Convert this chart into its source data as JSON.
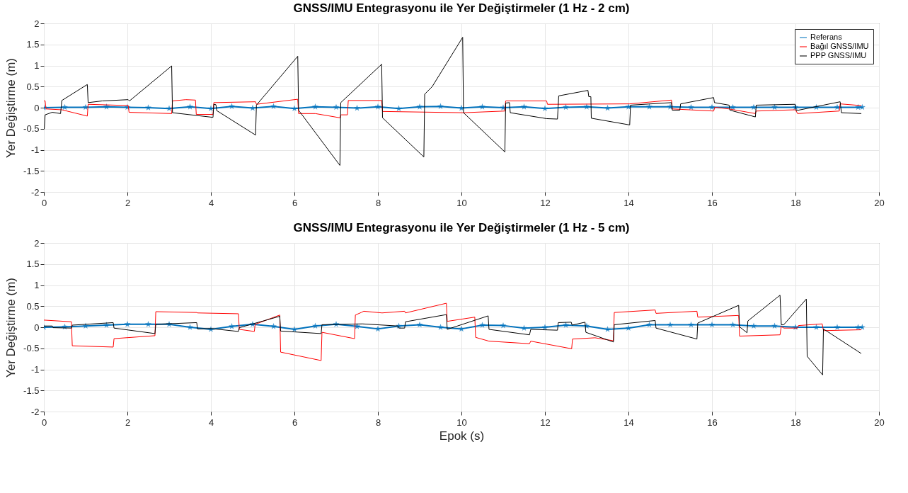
{
  "chart_data": [
    {
      "type": "line",
      "title": "GNSS/IMU Entegrasyonu ile Yer Değiştirmeler (1 Hz - 2 cm)",
      "ylabel": "Yer Değiştirme (m)",
      "xlim": [
        0,
        20
      ],
      "xticks": [
        0,
        2,
        4,
        6,
        8,
        10,
        12,
        14,
        16,
        18,
        20
      ],
      "ylim": [
        -2,
        2
      ],
      "yticks": [
        -2,
        -1.5,
        -1,
        -0.5,
        0,
        0.5,
        1,
        1.5,
        2
      ],
      "grid": true,
      "legend": "top right",
      "series": [
        {
          "name": "Referans",
          "color": "#0072bd",
          "marker": "star",
          "x": [
            0,
            0.5,
            1,
            1.5,
            2,
            2.5,
            3,
            3.5,
            4,
            4.5,
            5,
            5.5,
            6,
            6.5,
            7,
            7.5,
            8,
            8.5,
            9,
            9.5,
            10,
            10.5,
            11,
            11.5,
            12,
            12.5,
            13,
            13.5,
            14,
            14.5,
            15,
            15.5,
            16,
            16.5,
            17,
            17.5,
            18,
            18.5,
            19,
            19.5,
            19.6
          ],
          "values": [
            0,
            0.01,
            0.01,
            0.02,
            0.01,
            0,
            -0.02,
            0.02,
            -0.02,
            0.03,
            -0.01,
            0.03,
            -0.02,
            0.02,
            0.01,
            -0.01,
            0.02,
            -0.02,
            0.02,
            0.03,
            -0.01,
            0.02,
            0,
            0.02,
            -0.02,
            0.01,
            0.02,
            -0.01,
            0.02,
            0.02,
            0.02,
            0.01,
            0.01,
            0.01,
            0.01,
            0.01,
            0.01,
            0.01,
            0.01,
            0.01,
            0.01
          ]
        },
        {
          "name": "Bağıl GNSS/IMU",
          "color": "#ff0000",
          "x": [
            0,
            0.03,
            0.05,
            0.43,
            1.04,
            1.06,
            2.02,
            2.04,
            3.06,
            3.08,
            3.4,
            3.63,
            3.65,
            4.05,
            4.07,
            5.07,
            5.09,
            6.08,
            6.1,
            6.5,
            7.09,
            7.11,
            7.27,
            7.29,
            8.09,
            8.11,
            10.05,
            11.04,
            11.06,
            12.04,
            12.06,
            14.03,
            15.03,
            15.05,
            16.04,
            16.07,
            16.41,
            17.04,
            17.06,
            18,
            18.05,
            19.05,
            19.07,
            19.57
          ],
          "values": [
            0.16,
            0.16,
            -0.03,
            -0.05,
            -0.2,
            0.08,
            0.05,
            -0.11,
            -0.14,
            0.16,
            0.19,
            0.18,
            -0.16,
            -0.16,
            0.12,
            0.14,
            0.08,
            0.2,
            -0.14,
            -0.14,
            -0.24,
            -0.17,
            -0.17,
            0.17,
            0.17,
            -0.09,
            -0.12,
            -0.08,
            0.16,
            0.16,
            0.08,
            0.09,
            0.18,
            -0.03,
            -0.08,
            0.01,
            -0.03,
            -0.14,
            -0.08,
            -0.05,
            -0.14,
            -0.08,
            0.09,
            0.05
          ]
        },
        {
          "name": "PPP GNSS/IMU",
          "color": "#000000",
          "x": [
            0.01,
            0.03,
            0.2,
            0.4,
            0.43,
            1.04,
            1.06,
            1.4,
            2.02,
            2.05,
            3.06,
            3.08,
            4.05,
            4.07,
            4.12,
            4.14,
            5.07,
            5.09,
            6.08,
            6.1,
            7.09,
            7.11,
            8.09,
            8.11,
            9.1,
            9.12,
            9.3,
            10.03,
            10.05,
            11.04,
            11.06,
            11.15,
            11.17,
            12.04,
            12.3,
            12.33,
            13.03,
            13.05,
            13.1,
            13.11,
            14.03,
            14.05,
            15.03,
            15.05,
            15.23,
            15.25,
            16.04,
            16.06,
            16.41,
            16.43,
            17.04,
            17.06,
            17.99,
            18.02,
            19.07,
            19.1,
            19.57
          ],
          "values": [
            -0.5,
            -0.17,
            -0.11,
            -0.14,
            0.17,
            0.55,
            0.12,
            0.16,
            0.19,
            0.16,
            0.99,
            -0.12,
            -0.23,
            0.08,
            0.07,
            -0.07,
            -0.65,
            0.06,
            1.22,
            -0.06,
            -1.37,
            0.12,
            1.03,
            -0.24,
            -1.17,
            0.32,
            0.5,
            1.67,
            -0.12,
            -1.05,
            0.11,
            0.12,
            -0.12,
            -0.26,
            -0.27,
            0.28,
            0.41,
            0.26,
            0.26,
            -0.25,
            -0.41,
            0.06,
            0.12,
            -0.06,
            -0.06,
            0.09,
            0.24,
            0.12,
            0.06,
            -0.06,
            -0.22,
            0.06,
            0.08,
            -0.07,
            0.14,
            -0.12,
            -0.14
          ]
        }
      ]
    },
    {
      "type": "line",
      "title": "GNSS/IMU Entegrasyonu ile Yer Değiştirmeler (1 Hz - 5 cm)",
      "xlabel": "Epok (s)",
      "ylabel": "Yer Değiştirme (m)",
      "xlim": [
        0,
        20
      ],
      "xticks": [
        0,
        2,
        4,
        6,
        8,
        10,
        12,
        14,
        16,
        18,
        20
      ],
      "ylim": [
        -2,
        2
      ],
      "yticks": [
        -2,
        -1.5,
        -1,
        -0.5,
        0,
        0.5,
        1,
        1.5,
        2
      ],
      "grid": true,
      "series": [
        {
          "color": "#0072bd",
          "marker": "star",
          "x": [
            0,
            0.5,
            1,
            1.5,
            2,
            2.5,
            3,
            3.5,
            4,
            4.5,
            5,
            5.5,
            6,
            6.5,
            7,
            7.5,
            8,
            8.5,
            9,
            9.5,
            10,
            10.5,
            11,
            11.5,
            12,
            12.5,
            13,
            13.5,
            14,
            14.5,
            15,
            15.5,
            16,
            16.5,
            17,
            17.5,
            18,
            18.5,
            19,
            19.5,
            19.6
          ],
          "values": [
            0,
            0.01,
            0.03,
            0.05,
            0.07,
            0.07,
            0.07,
            0,
            -0.05,
            0.02,
            0.07,
            0.02,
            -0.05,
            0.03,
            0.07,
            0.02,
            -0.04,
            0.03,
            0.06,
            0,
            -0.04,
            0.05,
            0.04,
            -0.02,
            0,
            0.05,
            0.03,
            -0.05,
            -0.02,
            0.06,
            0.06,
            0.06,
            0.06,
            0.06,
            0.03,
            0.03,
            0,
            0,
            0,
            0,
            0
          ]
        },
        {
          "color": "#ff0000",
          "x": [
            0,
            0.66,
            0.68,
            1.66,
            1.68,
            2.66,
            2.68,
            3.66,
            3.68,
            4.66,
            4.68,
            5.04,
            5.06,
            5.65,
            5.67,
            6.64,
            6.66,
            7.44,
            7.46,
            7.6,
            7.66,
            8.1,
            8.64,
            8.66,
            9.64,
            9.66,
            10.32,
            10.34,
            10.66,
            11.63,
            11.66,
            12.64,
            12.66,
            13.2,
            13.64,
            13.66,
            14.64,
            14.66,
            15.64,
            15.66,
            16.64,
            16.66,
            17.63,
            17.66,
            17.72,
            18.05,
            18.07,
            18.64,
            18.67,
            19.57
          ],
          "values": [
            0.17,
            0.13,
            -0.44,
            -0.47,
            -0.27,
            -0.2,
            0.37,
            0.35,
            0.34,
            0.32,
            -0.05,
            -0.1,
            0.07,
            0.29,
            -0.59,
            -0.79,
            -0.12,
            -0.27,
            0.29,
            0.35,
            0.38,
            0.34,
            0.38,
            0.34,
            0.57,
            0.14,
            0.24,
            -0.24,
            -0.33,
            -0.39,
            -0.33,
            -0.51,
            -0.28,
            -0.25,
            -0.32,
            0.35,
            0.41,
            0.33,
            0.38,
            0.24,
            0.28,
            -0.21,
            -0.18,
            0.02,
            -0.02,
            -0.02,
            0.04,
            0.08,
            -0.08,
            -0.06
          ]
        },
        {
          "color": "#000000",
          "x": [
            0,
            0.2,
            0.22,
            0.66,
            0.68,
            1.66,
            1.68,
            2.66,
            2.68,
            3.66,
            3.68,
            4.0,
            4.66,
            4.68,
            5.65,
            5.67,
            6.64,
            6.66,
            7.63,
            8.48,
            8.5,
            8.64,
            8.66,
            9.64,
            9.66,
            10.64,
            10.66,
            11.63,
            11.66,
            12.3,
            12.32,
            12.63,
            12.65,
            12.96,
            12.98,
            13.64,
            13.66,
            14.64,
            14.66,
            15.64,
            15.66,
            16.64,
            16.66,
            16.84,
            16.86,
            17.63,
            17.66,
            17.72,
            18.26,
            18.28,
            18.65,
            18.67,
            19.57
          ],
          "values": [
            0.03,
            0.03,
            -0.01,
            -0.02,
            0.05,
            0.11,
            -0.02,
            -0.15,
            0.07,
            0.11,
            -0.04,
            -0.03,
            -0.1,
            -0.01,
            0.26,
            -0.09,
            -0.15,
            0.06,
            0.08,
            0.03,
            -0.02,
            -0.02,
            0.13,
            0.3,
            -0.05,
            0.27,
            -0.05,
            -0.18,
            -0.05,
            -0.07,
            0.11,
            0.12,
            0.05,
            0.12,
            -0.12,
            -0.35,
            0.06,
            0.16,
            -0.02,
            -0.28,
            0.1,
            0.52,
            0.01,
            -0.13,
            0.15,
            0.76,
            0.06,
            0.06,
            0.67,
            -0.69,
            -1.13,
            -0.04,
            -0.62
          ]
        }
      ]
    }
  ]
}
